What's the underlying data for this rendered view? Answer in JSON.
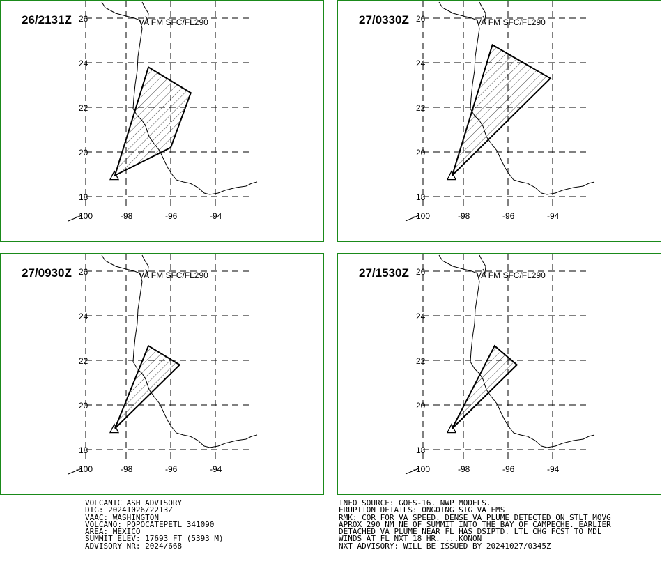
{
  "panels": [
    {
      "time": "26/2131Z",
      "label": "VA FM SFC/FL290",
      "plume": [
        [
          -98.5,
          18.95
        ],
        [
          -97.0,
          23.8
        ],
        [
          -95.1,
          22.65
        ],
        [
          -96.0,
          20.2
        ]
      ]
    },
    {
      "time": "27/0330Z",
      "label": "VA FM SFC/FL290",
      "plume": [
        [
          -98.5,
          18.95
        ],
        [
          -96.7,
          24.8
        ],
        [
          -94.1,
          23.3
        ]
      ]
    },
    {
      "time": "27/0930Z",
      "label": "VA FM SFC/FL290",
      "plume": [
        [
          -98.5,
          18.95
        ],
        [
          -97.0,
          22.65
        ],
        [
          -95.6,
          21.8
        ]
      ]
    },
    {
      "time": "27/1530Z",
      "label": "VA FM SFC/FL290",
      "plume": [
        [
          -98.5,
          18.95
        ],
        [
          -96.6,
          22.65
        ],
        [
          -95.6,
          21.8
        ]
      ]
    }
  ],
  "lat_ticks": [
    "26",
    "24",
    "22",
    "20",
    "18"
  ],
  "lon_ticks": [
    "-100",
    "-98",
    "-96",
    "-94"
  ],
  "left_info": [
    "VOLCANIC ASH ADVISORY",
    "DTG: 20241026/2213Z",
    "VAAC: WASHINGTON",
    "VOLCANO: POPOCATEPETL 341090",
    "AREA: MEXICO",
    "SUMMIT ELEV: 17693 FT (5393 M)",
    "ADVISORY NR: 2024/668"
  ],
  "right_info": [
    "INFO SOURCE: GOES-16. NWP MODELS.",
    "ERUPTION DETAILS: ONGOING SIG VA EMS",
    "RMK: COR FOR VA SPEED. DENSE VA PLUME DETECTED ON STLT MOVG",
    "APROX 290 NM NE OF SUMMIT INTO THE BAY OF CAMPECHE. EARLIER",
    "DETACHED VA PLUME NEAR FL HAS DSIPTD. LTL CHG FCST TO MDL",
    "WINDS AT FL NXT 18 HR. ...KONON",
    "NXT ADVISORY: WILL BE ISSUED BY 20241027/0345Z"
  ],
  "colors": {
    "border": "#1a8a1a",
    "lines": "#000000"
  }
}
